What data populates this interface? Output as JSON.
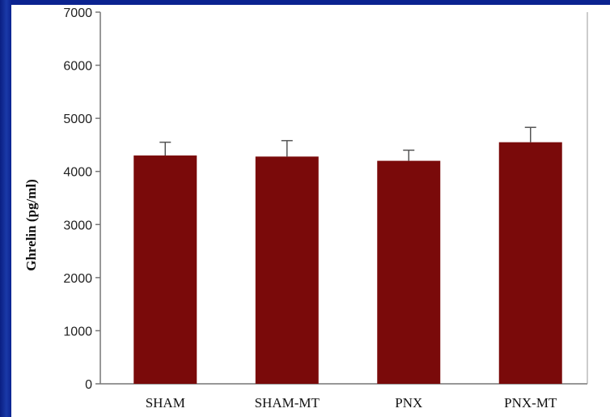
{
  "chart_data": {
    "type": "bar",
    "title": "",
    "xlabel": "",
    "ylabel": "Ghrelin (pg/ml)",
    "categories": [
      "SHAM",
      "SHAM-MT",
      "PNX",
      "PNX-MT"
    ],
    "values": [
      4300,
      4280,
      4200,
      4550
    ],
    "errors": [
      250,
      300,
      200,
      280
    ],
    "ylim": [
      0,
      7000
    ],
    "yticks": [
      0,
      1000,
      2000,
      3000,
      4000,
      5000,
      6000,
      7000
    ],
    "grid": false,
    "bar_color": "#7a0a0a",
    "background_color": "#ffffff",
    "frame_color": "#0b2390"
  }
}
